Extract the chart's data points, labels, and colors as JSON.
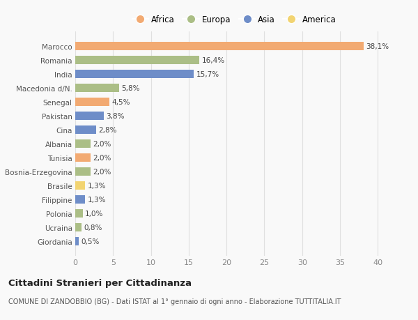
{
  "countries": [
    "Marocco",
    "Romania",
    "India",
    "Macedonia d/N.",
    "Senegal",
    "Pakistan",
    "Cina",
    "Albania",
    "Tunisia",
    "Bosnia-Erzegovina",
    "Brasile",
    "Filippine",
    "Polonia",
    "Ucraina",
    "Giordania"
  ],
  "values": [
    38.1,
    16.4,
    15.7,
    5.8,
    4.5,
    3.8,
    2.8,
    2.0,
    2.0,
    2.0,
    1.3,
    1.3,
    1.0,
    0.8,
    0.5
  ],
  "labels": [
    "38,1%",
    "16,4%",
    "15,7%",
    "5,8%",
    "4,5%",
    "3,8%",
    "2,8%",
    "2,0%",
    "2,0%",
    "2,0%",
    "1,3%",
    "1,3%",
    "1,0%",
    "0,8%",
    "0,5%"
  ],
  "continents": [
    "Africa",
    "Europa",
    "Asia",
    "Europa",
    "Africa",
    "Asia",
    "Asia",
    "Europa",
    "Africa",
    "Europa",
    "America",
    "Asia",
    "Europa",
    "Europa",
    "Asia"
  ],
  "continent_colors": {
    "Africa": "#F2AA72",
    "Europa": "#ABBE86",
    "Asia": "#6E8DC8",
    "America": "#F2D472"
  },
  "legend_order": [
    "Africa",
    "Europa",
    "Asia",
    "America"
  ],
  "title": "Cittadini Stranieri per Cittadinanza",
  "subtitle": "COMUNE DI ZANDOBBIO (BG) - Dati ISTAT al 1° gennaio di ogni anno - Elaborazione TUTTITALIA.IT",
  "xlim": [
    0,
    42
  ],
  "background_color": "#f9f9f9",
  "grid_color": "#e0e0e0"
}
